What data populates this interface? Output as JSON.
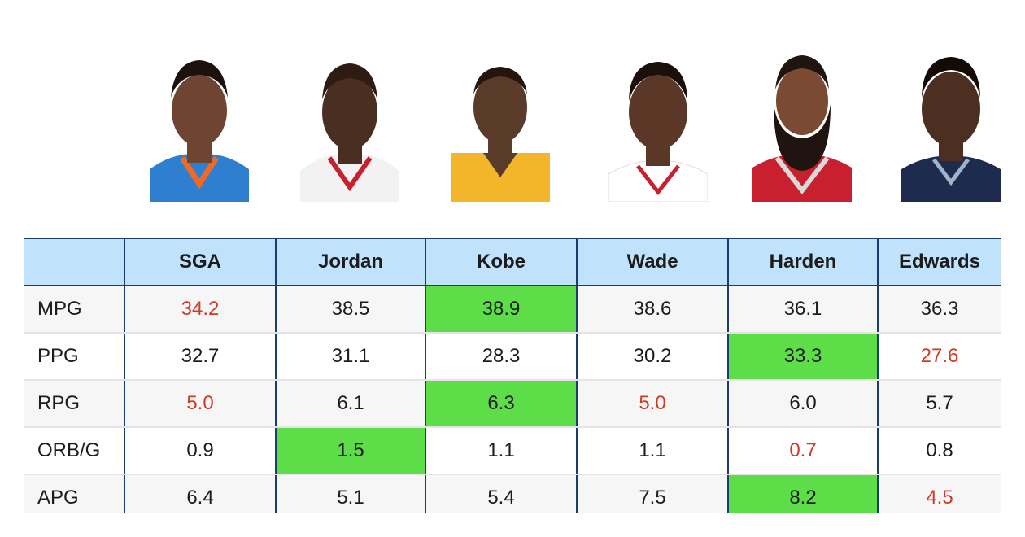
{
  "players": [
    {
      "name": "SGA",
      "jersey_color": "#2f7fd0",
      "skin": "#6e4530"
    },
    {
      "name": "Jordan",
      "jersey_color": "#f2f2f2",
      "skin": "#4a2e22"
    },
    {
      "name": "Kobe",
      "jersey_color": "#f3b52a",
      "skin": "#5a3a29"
    },
    {
      "name": "Wade",
      "jersey_color": "#ffffff",
      "skin": "#5b3727"
    },
    {
      "name": "Harden",
      "jersey_color": "#c8202f",
      "skin": "#7a4a33"
    },
    {
      "name": "Edwards",
      "jersey_color": "#1d2b4f",
      "skin": "#4d2f22"
    }
  ],
  "table": {
    "columns": [
      "",
      "SGA",
      "Jordan",
      "Kobe",
      "Wade",
      "Harden",
      "Edwards"
    ],
    "rows": [
      {
        "label": "MPG",
        "values": [
          "34.2",
          "38.5",
          "38.9",
          "38.6",
          "36.1",
          "36.3"
        ],
        "best": 2,
        "worst": [
          0
        ]
      },
      {
        "label": "PPG",
        "values": [
          "32.7",
          "31.1",
          "28.3",
          "30.2",
          "33.3",
          "27.6"
        ],
        "best": 4,
        "worst": [
          5
        ]
      },
      {
        "label": "RPG",
        "values": [
          "5.0",
          "6.1",
          "6.3",
          "5.0",
          "6.0",
          "5.7"
        ],
        "best": 2,
        "worst": [
          0,
          3
        ]
      },
      {
        "label": "ORB/G",
        "values": [
          "0.9",
          "1.5",
          "1.1",
          "1.1",
          "0.7",
          "0.8"
        ],
        "best": 1,
        "worst": [
          4
        ]
      },
      {
        "label": "APG",
        "values": [
          "6.4",
          "5.1",
          "5.4",
          "7.5",
          "8.2",
          "4.5"
        ],
        "best": 4,
        "worst": [
          5
        ]
      }
    ]
  },
  "colors": {
    "header_bg": "#c0e2fb",
    "border": "#1a3d6e",
    "best_bg": "#5ddd47",
    "worst_text": "#cf3b25"
  }
}
